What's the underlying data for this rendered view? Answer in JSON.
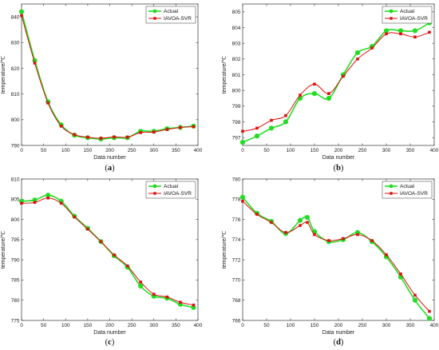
{
  "colors": {
    "actual": "#22dd22",
    "predicted": "#dd1111"
  },
  "chart_data": [
    {
      "panel": "(a)",
      "type": "line",
      "xlabel": "Data number",
      "ylabel": "temperature/℃",
      "xlim": [
        0,
        400
      ],
      "ylim": [
        790,
        845
      ],
      "xticks": [
        0,
        50,
        100,
        150,
        200,
        250,
        300,
        350,
        400
      ],
      "yticks": [
        790,
        800,
        810,
        820,
        830,
        840
      ],
      "legend": "top-right",
      "x": [
        0,
        30,
        60,
        90,
        120,
        150,
        180,
        210,
        240,
        270,
        300,
        330,
        360,
        390
      ],
      "series": [
        {
          "name": "Actual",
          "marker": "circle",
          "values": [
            842,
            823,
            807,
            798,
            794,
            793,
            792.5,
            793,
            793,
            795.5,
            795.5,
            796.5,
            797,
            797.5
          ]
        },
        {
          "name": "IAVOA-SVR",
          "marker": "square",
          "values": [
            840.5,
            822,
            806.5,
            797.5,
            794.2,
            793.2,
            792.8,
            793.3,
            793.2,
            795,
            795.2,
            796.2,
            797,
            797.3
          ]
        }
      ]
    },
    {
      "panel": "(b)",
      "type": "line",
      "xlabel": "Data number",
      "ylabel": "temperature/℃",
      "xlim": [
        0,
        400
      ],
      "ylim": [
        796.5,
        805.5
      ],
      "xticks": [
        0,
        50,
        100,
        150,
        200,
        250,
        300,
        350,
        400
      ],
      "yticks": [
        797,
        798,
        799,
        800,
        801,
        802,
        803,
        804,
        805
      ],
      "legend": "top-right",
      "x": [
        0,
        30,
        60,
        90,
        120,
        150,
        180,
        210,
        240,
        270,
        300,
        330,
        360,
        390
      ],
      "series": [
        {
          "name": "Actual",
          "marker": "circle",
          "values": [
            796.7,
            797.1,
            797.6,
            798,
            799.5,
            799.8,
            799.5,
            801,
            802.4,
            802.8,
            803.8,
            803.8,
            803.8,
            804.3
          ]
        },
        {
          "name": "IAVOA-SVR",
          "marker": "square",
          "values": [
            797.4,
            797.6,
            798.1,
            798.4,
            799.7,
            800.4,
            799.8,
            800.9,
            802,
            802.7,
            803.6,
            803.6,
            803.4,
            803.7
          ]
        }
      ]
    },
    {
      "panel": "(c)",
      "type": "line",
      "xlabel": "Data number",
      "ylabel": "temperature/℃",
      "xlim": [
        0,
        400
      ],
      "ylim": [
        775,
        810
      ],
      "xticks": [
        0,
        50,
        100,
        150,
        200,
        250,
        300,
        350,
        400
      ],
      "yticks": [
        775,
        780,
        785,
        790,
        795,
        800,
        805,
        810
      ],
      "legend": "top-right",
      "x": [
        0,
        30,
        60,
        90,
        120,
        150,
        180,
        210,
        240,
        270,
        300,
        330,
        360,
        390
      ],
      "series": [
        {
          "name": "Actual",
          "marker": "circle",
          "values": [
            804.5,
            804.8,
            806,
            804.5,
            800.8,
            797.8,
            794.5,
            791,
            788.2,
            783.5,
            781,
            780.5,
            779,
            778.2
          ]
        },
        {
          "name": "IAVOA-SVR",
          "marker": "square",
          "values": [
            804,
            804.2,
            805.3,
            804,
            800.6,
            797.6,
            794.5,
            791.2,
            788.5,
            784.5,
            781.5,
            780.8,
            779.5,
            778.8
          ]
        }
      ]
    },
    {
      "panel": "(d)",
      "type": "line",
      "xlabel": "Data number",
      "ylabel": "temperature/℃",
      "xlim": [
        0,
        400
      ],
      "ylim": [
        766,
        780
      ],
      "xticks": [
        0,
        50,
        100,
        150,
        200,
        250,
        300,
        350,
        400
      ],
      "yticks": [
        766,
        768,
        770,
        772,
        774,
        776,
        778,
        780
      ],
      "legend": "top-right",
      "x": [
        0,
        30,
        60,
        90,
        120,
        135,
        150,
        180,
        210,
        240,
        270,
        300,
        330,
        360,
        390
      ],
      "series": [
        {
          "name": "Actual",
          "marker": "circle",
          "values": [
            778.2,
            776.6,
            775.8,
            774.6,
            775.9,
            776.2,
            774.8,
            773.8,
            774,
            774.7,
            773.8,
            772.3,
            770.3,
            768,
            766.2
          ]
        },
        {
          "name": "IAVOA-SVR",
          "marker": "square",
          "values": [
            777.8,
            776.5,
            775.7,
            774.7,
            775.4,
            775.7,
            774.5,
            773.9,
            774.1,
            774.5,
            773.9,
            772.5,
            770.6,
            768.5,
            766.9
          ]
        }
      ]
    }
  ]
}
